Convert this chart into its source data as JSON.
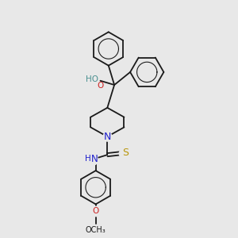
{
  "bg_color": "#e8e8e8",
  "bond_color": "#1a1a1a",
  "bond_width": 1.3,
  "atom_colors": {
    "C": "#1a1a1a",
    "N": "#2020cc",
    "O": "#cc2020",
    "S": "#b8960a",
    "H": "#1a1a1a",
    "HO": "#4a9090"
  },
  "font_size_atom": 7.5
}
